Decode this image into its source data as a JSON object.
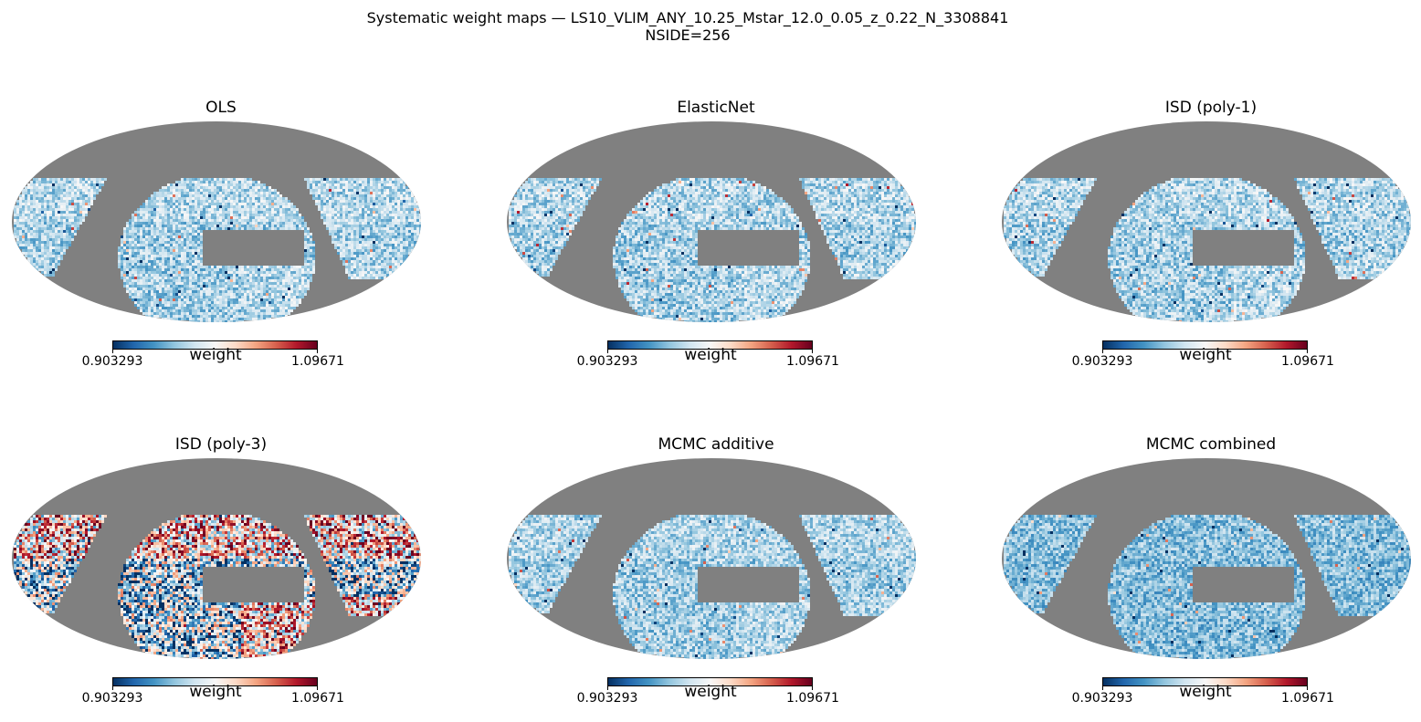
{
  "figure": {
    "title_line1": "Systematic weight maps — LS10_VLIM_ANY_10.25_Mstar_12.0_0.05_z_0.22_N_3308841",
    "title_line2": "NSIDE=256"
  },
  "colors": {
    "mask_gray": "#808080",
    "cmap_low": "#053061",
    "cmap_mid": "#f7f7f7",
    "cmap_high": "#67001f",
    "colormap": "RdBu_r"
  },
  "chart_data": [
    {
      "type": "heatmap",
      "projection": "mollweide",
      "title": "OLS",
      "colorbar": {
        "label": "weight",
        "min": "0.903293",
        "max": "1.09671",
        "vmin": 0.903293,
        "vmax": 1.09671
      },
      "pattern": {
        "base": -0.3,
        "spread": 0.28,
        "gradient": 0.05,
        "seed": 11
      }
    },
    {
      "type": "heatmap",
      "projection": "mollweide",
      "title": "ElasticNet",
      "colorbar": {
        "label": "weight",
        "min": "0.903293",
        "max": "1.09671",
        "vmin": 0.903293,
        "vmax": 1.09671
      },
      "pattern": {
        "base": -0.3,
        "spread": 0.28,
        "gradient": 0.05,
        "seed": 23
      }
    },
    {
      "type": "heatmap",
      "projection": "mollweide",
      "title": "ISD (poly-1)",
      "colorbar": {
        "label": "weight",
        "min": "0.903293",
        "max": "1.09671",
        "vmin": 0.903293,
        "vmax": 1.09671
      },
      "pattern": {
        "base": -0.3,
        "spread": 0.28,
        "gradient": 0.05,
        "seed": 37
      }
    },
    {
      "type": "heatmap",
      "projection": "mollweide",
      "title": "ISD (poly-3)",
      "colorbar": {
        "label": "weight",
        "min": "0.903293",
        "max": "1.09671",
        "vmin": 0.903293,
        "vmax": 1.09671
      },
      "pattern": {
        "base": -0.1,
        "spread": 0.85,
        "gradient": 0.55,
        "seed": 41
      }
    },
    {
      "type": "heatmap",
      "projection": "mollweide",
      "title": "MCMC additive",
      "colorbar": {
        "label": "weight",
        "min": "0.903293",
        "max": "1.09671",
        "vmin": 0.903293,
        "vmax": 1.09671
      },
      "pattern": {
        "base": -0.32,
        "spread": 0.26,
        "gradient": 0.05,
        "seed": 53
      }
    },
    {
      "type": "heatmap",
      "projection": "mollweide",
      "title": "MCMC combined",
      "colorbar": {
        "label": "weight",
        "min": "0.903293",
        "max": "1.09671",
        "vmin": 0.903293,
        "vmax": 1.09671
      },
      "pattern": {
        "base": -0.42,
        "spread": 0.24,
        "gradient": 0.02,
        "seed": 67
      }
    }
  ]
}
